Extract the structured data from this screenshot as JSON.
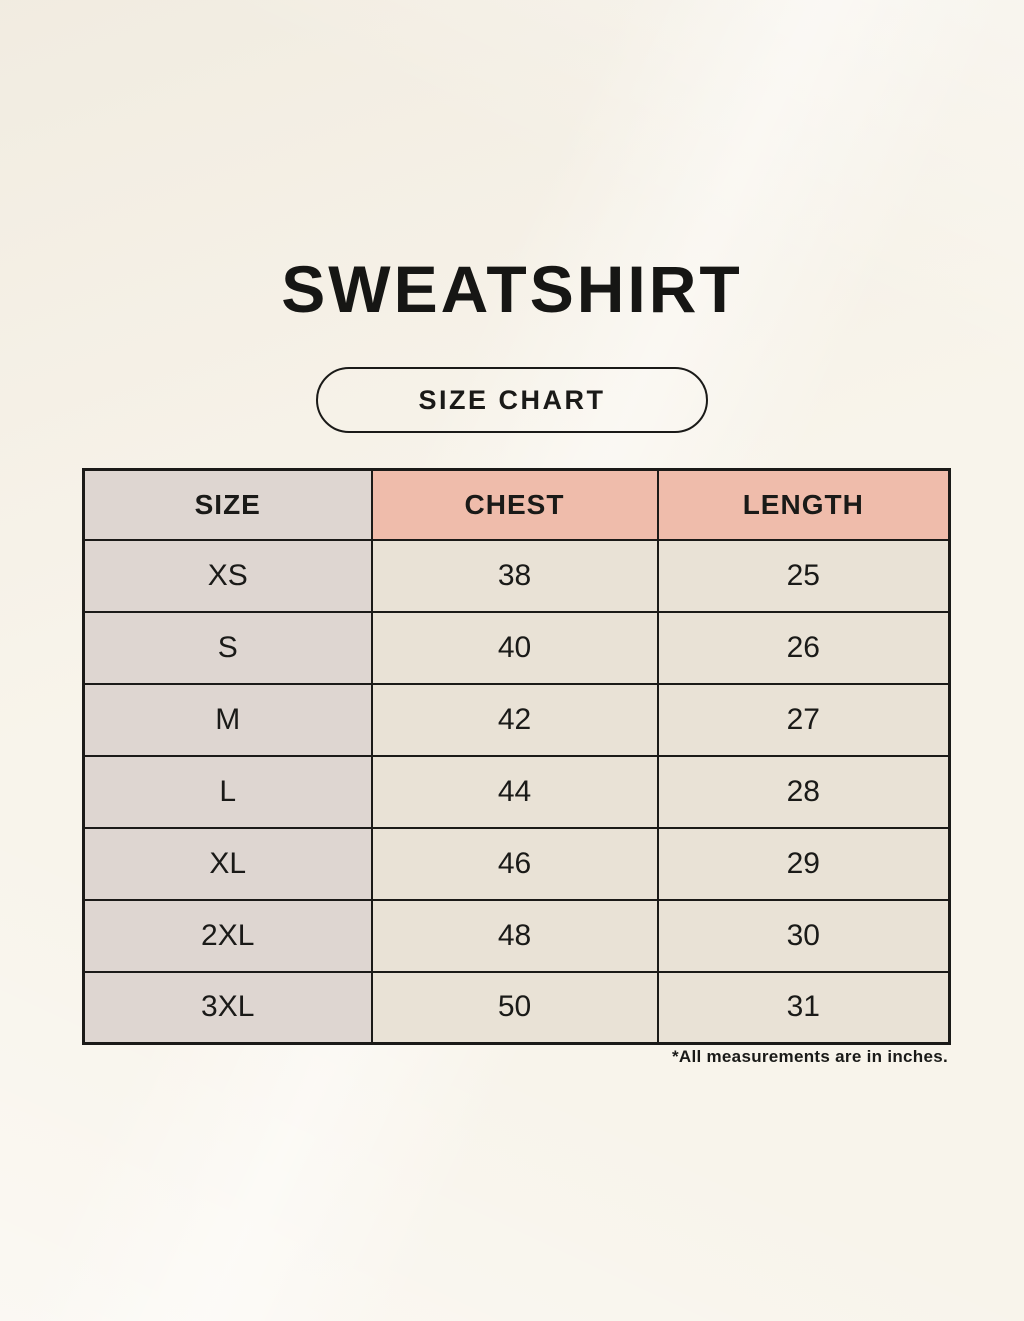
{
  "page": {
    "title": "SWEATSHIRT",
    "badge_label": "SIZE CHART",
    "footnote": "*All measurements are in inches."
  },
  "table": {
    "headers": [
      "SIZE",
      "CHEST",
      "LENGTH"
    ],
    "rows": [
      {
        "size": "XS",
        "chest": "38",
        "length": "25"
      },
      {
        "size": "S",
        "chest": "40",
        "length": "26"
      },
      {
        "size": "M",
        "chest": "42",
        "length": "27"
      },
      {
        "size": "L",
        "chest": "44",
        "length": "28"
      },
      {
        "size": "XL",
        "chest": "46",
        "length": "29"
      },
      {
        "size": "2XL",
        "chest": "48",
        "length": "30"
      },
      {
        "size": "3XL",
        "chest": "50",
        "length": "31"
      }
    ]
  },
  "chart_data": {
    "type": "table",
    "title": "SWEATSHIRT SIZE CHART",
    "columns": [
      "SIZE",
      "CHEST",
      "LENGTH"
    ],
    "rows": [
      [
        "XS",
        38,
        25
      ],
      [
        "S",
        40,
        26
      ],
      [
        "M",
        42,
        27
      ],
      [
        "L",
        44,
        28
      ],
      [
        "XL",
        46,
        29
      ],
      [
        "2XL",
        48,
        30
      ],
      [
        "3XL",
        50,
        31
      ]
    ],
    "units": "inches",
    "note": "*All measurements are in inches."
  },
  "colors": {
    "background": "#f8f4eb",
    "header_pink": "#efbcab",
    "size_column_gray": "#ded6d1",
    "value_cell_cream": "#e9e2d6",
    "border": "#1b1a18",
    "text": "#1a1a18"
  }
}
